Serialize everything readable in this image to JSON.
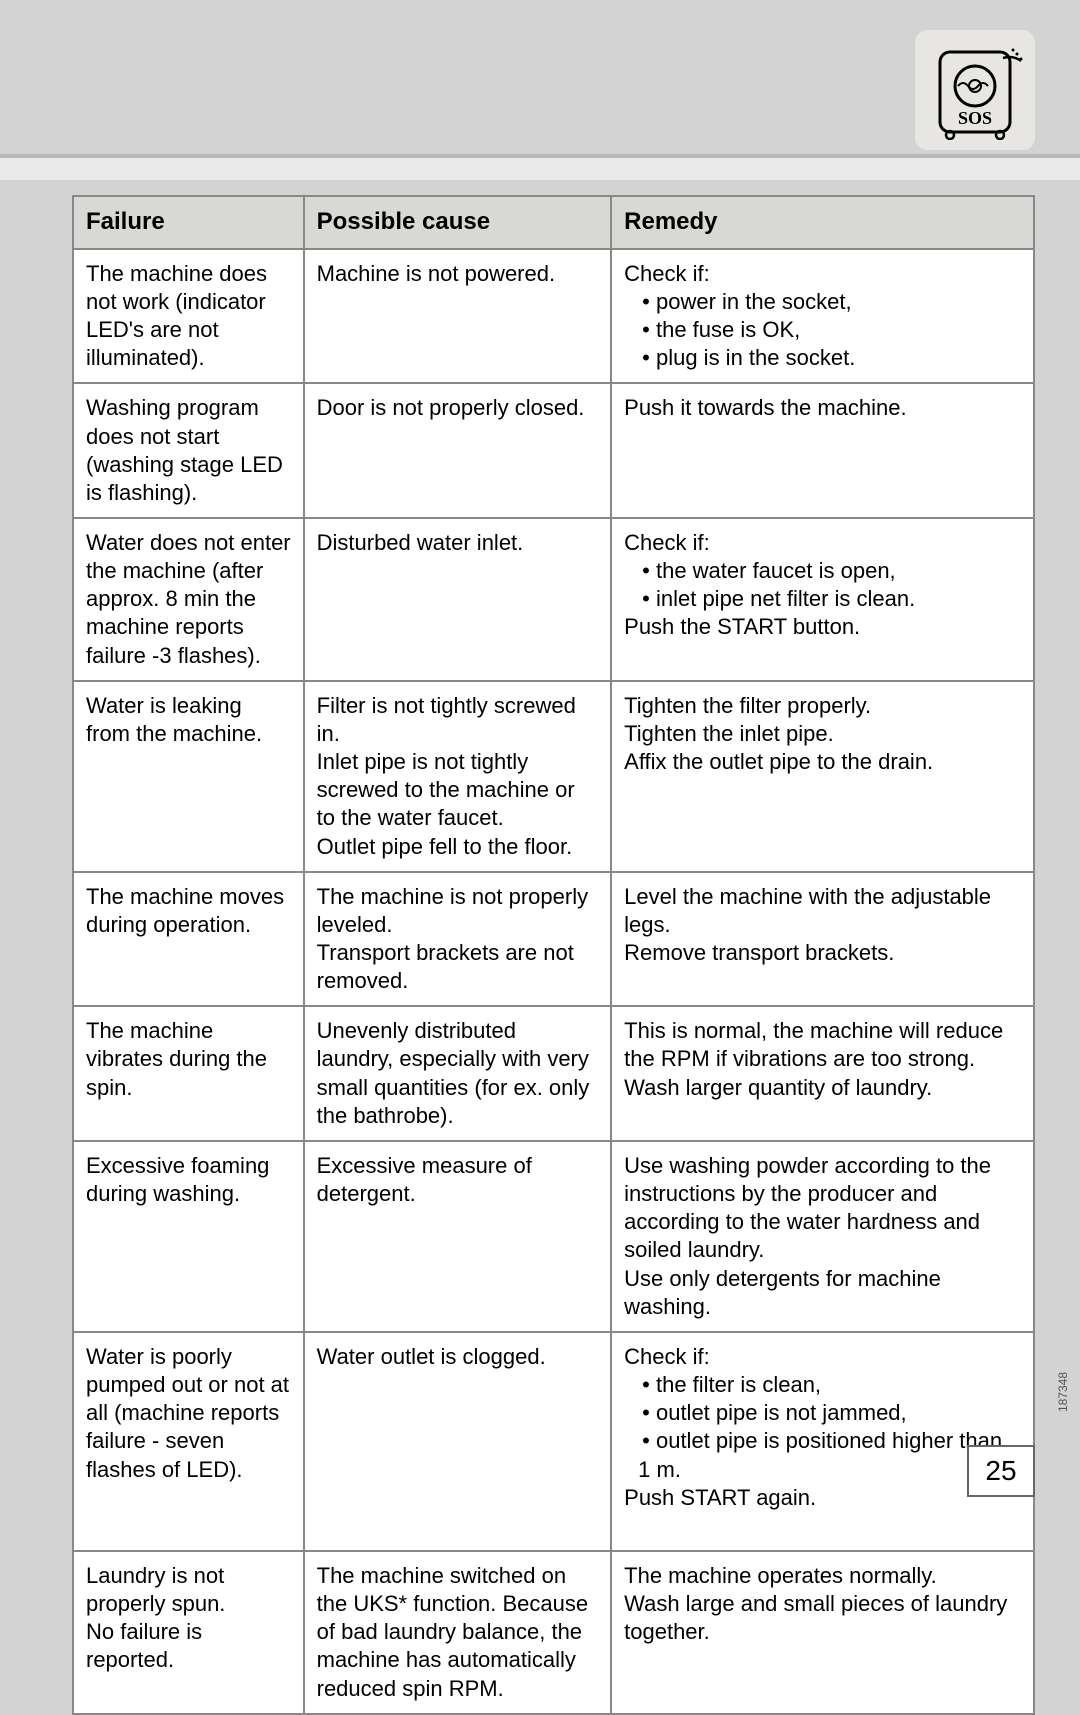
{
  "icon": {
    "name": "washing-machine-sos-icon"
  },
  "table": {
    "headers": {
      "failure": "Failure",
      "cause": "Possible cause",
      "remedy": "Remedy"
    },
    "rows": [
      {
        "failure": "The machine does not work (indicator LED's are not illuminated).",
        "cause": "Machine is not powered.",
        "remedy_lead": "Check if:",
        "remedy_bullets": [
          "power in the socket,",
          "the fuse is OK,",
          "plug is in the socket."
        ]
      },
      {
        "failure": "Washing program does not start (washing stage LED is flashing).",
        "cause": "Door is not properly closed.",
        "remedy_text": "Push it towards the machine."
      },
      {
        "failure": "Water does not enter the machine (after approx. 8 min the machine reports failure -3 flashes).",
        "cause": "Disturbed water inlet.",
        "remedy_lead": "Check if:",
        "remedy_bullets": [
          "the water faucet is open,",
          "inlet pipe net filter is clean."
        ],
        "remedy_tail": "Push the START button."
      },
      {
        "failure": "Water is leaking from the machine.",
        "cause_lines": [
          "Filter is not tightly screwed in.",
          "Inlet pipe is not tightly screwed to the machine or to the water faucet.",
          "Outlet pipe fell to the floor."
        ],
        "remedy_lines": [
          "Tighten the filter properly.",
          "Tighten the inlet pipe.",
          "Affix the outlet pipe to the drain."
        ]
      },
      {
        "failure": "The machine moves during operation.",
        "cause_lines": [
          "The machine is not properly leveled.",
          "Transport brackets are not removed."
        ],
        "remedy_lines": [
          "Level the machine with the adjustable legs.",
          "Remove transport brackets."
        ]
      },
      {
        "failure": "The machine vibrates during the spin.",
        "cause": "Unevenly distributed laundry, especially with very small quantities (for ex. only the bathrobe).",
        "remedy_lines": [
          "This is normal, the machine will reduce the RPM if vibrations are too strong.",
          "Wash larger quantity of laundry."
        ]
      },
      {
        "failure": "Excessive foaming during washing.",
        "cause": "Excessive measure of detergent.",
        "remedy_lines": [
          "Use washing powder according to the instructions by the producer and according to the water hardness and soiled laundry.",
          "Use only detergents for machine washing."
        ]
      },
      {
        "failure": "Water is poorly pumped out or not at all (machine reports failure  - seven flashes of LED).",
        "cause": "Water outlet is clogged.",
        "remedy_lead": "Check if:",
        "remedy_bullets": [
          "the filter is clean,",
          "outlet pipe is not jammed,",
          "outlet pipe is positioned higher than"
        ],
        "remedy_indent": "1 m.",
        "remedy_tail": "Push START again.",
        "extra_pad": true
      },
      {
        "failure_lines": [
          "Laundry is not properly spun.",
          "No failure is reported."
        ],
        "cause": "The machine switched on the UKS* function. Because of bad laundry balance, the machine has automatically reduced spin RPM.",
        "remedy_lines": [
          "The machine operates normally.",
          "Wash large and small pieces of laundry together."
        ]
      }
    ]
  },
  "page_number": "25",
  "side_code": "187348"
}
